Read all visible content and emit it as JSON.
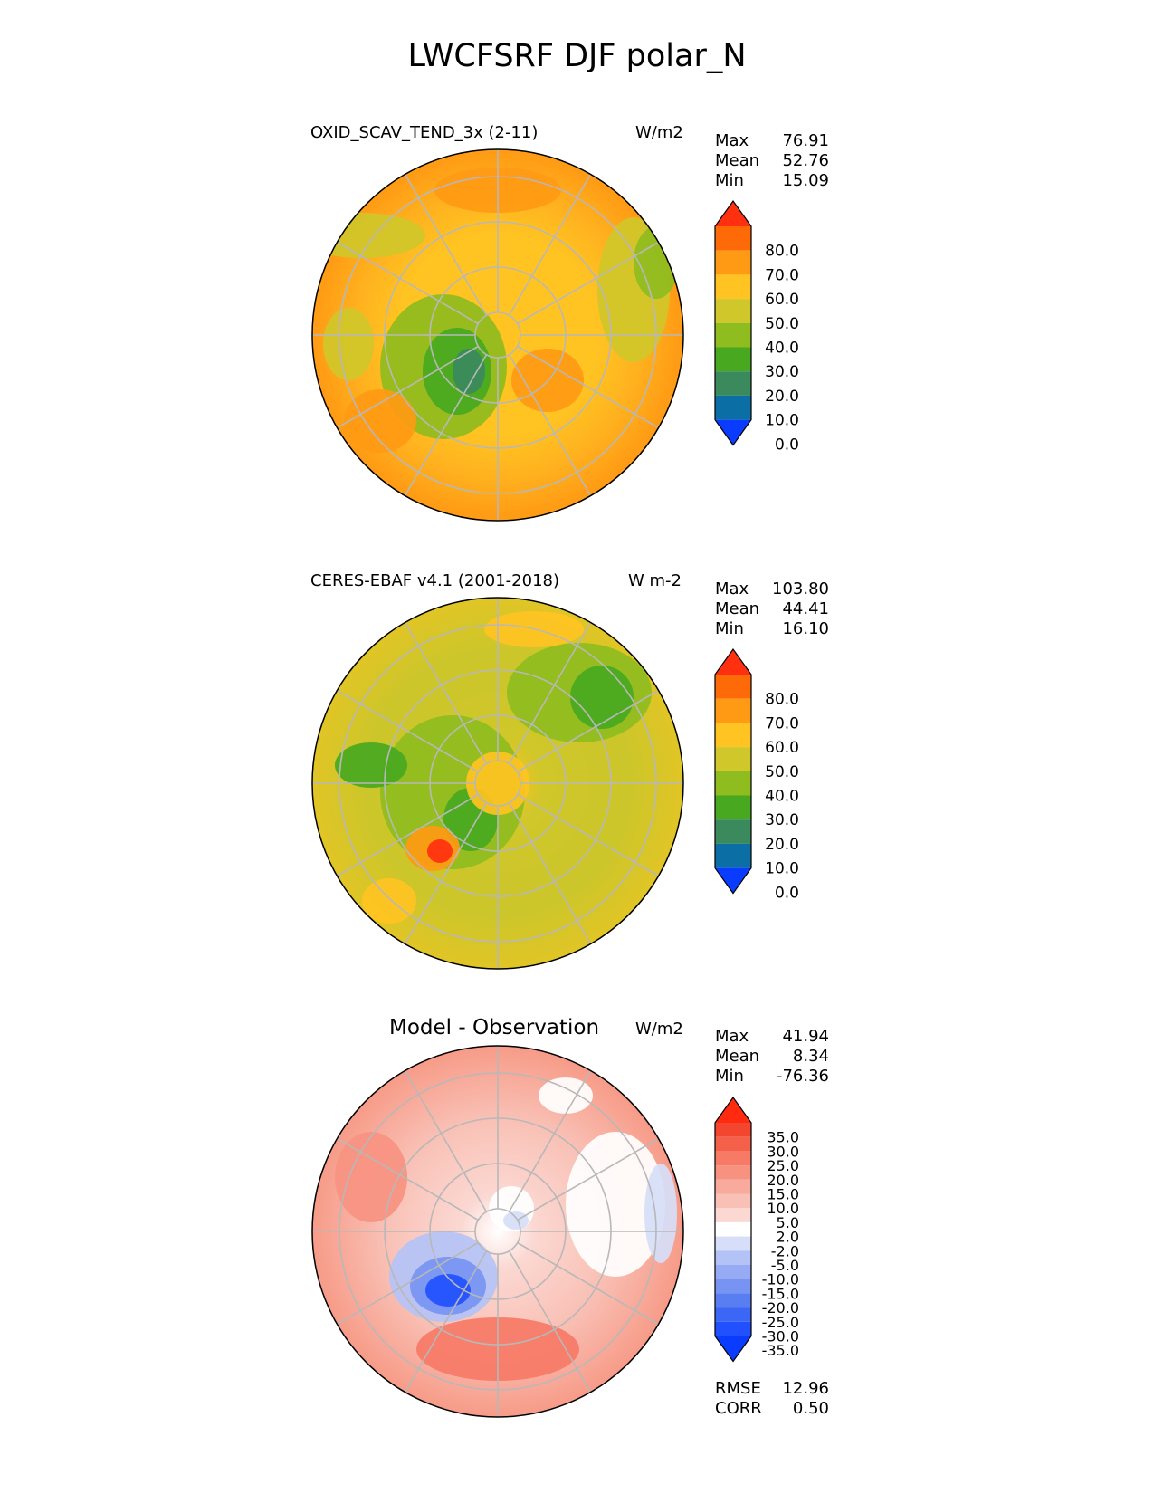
{
  "title": "LWCFSRF DJF polar_N",
  "chart_data": [
    {
      "type": "heatmap",
      "projection": "polar stereographic (North Pole)",
      "title": "OXID_SCAV_TEND_3x (2-11)",
      "units": "W/m2",
      "stats": [
        {
          "label": "Max",
          "value": "76.91"
        },
        {
          "label": "Mean",
          "value": "52.76"
        },
        {
          "label": "Min",
          "value": "15.09"
        }
      ],
      "colorbar": {
        "levels": [
          0,
          10,
          20,
          30,
          40,
          50,
          60,
          70,
          80
        ],
        "tick_labels": [
          "80.0",
          "70.0",
          "60.0",
          "50.0",
          "40.0",
          "30.0",
          "20.0",
          "10.0",
          "0.0"
        ],
        "colors": [
          "#0a3cff",
          "#0b6fa6",
          "#3a8a5e",
          "#48a820",
          "#8fbc1e",
          "#d0c72a",
          "#ffc322",
          "#ff9a14",
          "#ff6a08",
          "#ff3010"
        ],
        "extend": "both"
      }
    },
    {
      "type": "heatmap",
      "projection": "polar stereographic (North Pole)",
      "title": "CERES-EBAF v4.1 (2001-2018)",
      "units": "W m-2",
      "stats": [
        {
          "label": "Max",
          "value": "103.80"
        },
        {
          "label": "Mean",
          "value": "44.41"
        },
        {
          "label": "Min",
          "value": "16.10"
        }
      ],
      "colorbar": {
        "levels": [
          0,
          10,
          20,
          30,
          40,
          50,
          60,
          70,
          80
        ],
        "tick_labels": [
          "80.0",
          "70.0",
          "60.0",
          "50.0",
          "40.0",
          "30.0",
          "20.0",
          "10.0",
          "0.0"
        ],
        "colors": [
          "#0a3cff",
          "#0b6fa6",
          "#3a8a5e",
          "#48a820",
          "#8fbc1e",
          "#d0c72a",
          "#ffc322",
          "#ff9a14",
          "#ff6a08",
          "#ff3010"
        ],
        "extend": "both"
      }
    },
    {
      "type": "heatmap",
      "projection": "polar stereographic (North Pole)",
      "title": "Model - Observation",
      "units": "W/m2",
      "stats": [
        {
          "label": "Max",
          "value": "41.94"
        },
        {
          "label": "Mean",
          "value": "8.34"
        },
        {
          "label": "Min",
          "value": "-76.36"
        }
      ],
      "extra_stats": [
        {
          "label": "RMSE",
          "value": "12.96"
        },
        {
          "label": "CORR",
          "value": "0.50"
        }
      ],
      "colorbar": {
        "levels": [
          -35,
          -30,
          -25,
          -20,
          -15,
          -10,
          -5,
          -2,
          2,
          5,
          10,
          15,
          20,
          25,
          30,
          35
        ],
        "tick_labels": [
          "35.0",
          "30.0",
          "25.0",
          "20.0",
          "15.0",
          "10.0",
          "5.0",
          "2.0",
          "-2.0",
          "-5.0",
          "-10.0",
          "-15.0",
          "-20.0",
          "-25.0",
          "-30.0",
          "-35.0"
        ],
        "colors": [
          "#0a3cff",
          "#2150ff",
          "#3c66f5",
          "#587ef2",
          "#7794f2",
          "#96abf4",
          "#b4c3f6",
          "#d6def9",
          "#ffffff",
          "#fbd8d2",
          "#f9c1b6",
          "#f8aa9c",
          "#f79281",
          "#f67a66",
          "#f5604a",
          "#f4452f",
          "#ff2a10"
        ],
        "extend": "both"
      }
    }
  ]
}
